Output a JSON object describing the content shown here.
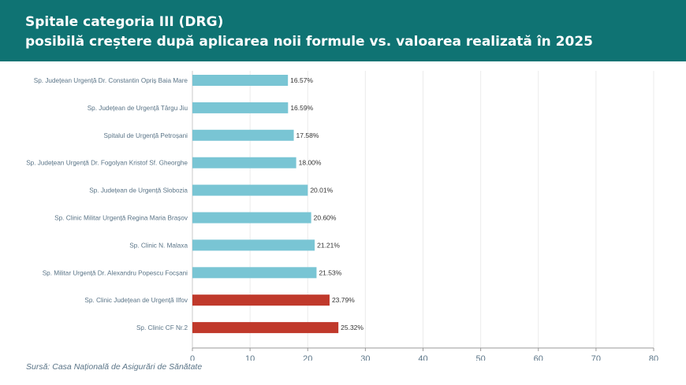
{
  "header": {
    "title_line1": "Spitale categoria III (DRG)",
    "title_line2": "posibilă creștere după aplicarea noii formule vs. valoarea realizată în 2025"
  },
  "source": "Sursă: Casa Națională de Asigurări de Sănătate",
  "colors": {
    "header_bg": "#0f7373",
    "bar_default": "#79c5d4",
    "bar_highlight": "#c0392b"
  },
  "chart_data": {
    "type": "bar",
    "orientation": "horizontal",
    "categories": [
      "Sp. Județean Urgență Dr. Constantin Opriș Baia Mare",
      "Sp. Județean de Urgență Târgu Jiu",
      "Spitalul de Urgență Petroșani",
      "Sp. Județean Urgență Dr. Fogolyan Kristof Sf. Gheorghe",
      "Sp. Județean de Urgență Slobozia",
      "Sp. Clinic Militar Urgență Regina Maria Brașov",
      "Sp. Clinic N. Malaxa",
      "Sp. Militar Urgență Dr. Alexandru Popescu Focșani",
      "Sp. Clinic Județean de Urgență Ilfov",
      "Sp. Clinic CF Nr.2"
    ],
    "values": [
      16.57,
      16.59,
      17.58,
      18.0,
      20.01,
      20.6,
      21.21,
      21.53,
      23.79,
      25.32
    ],
    "data_labels": [
      "16.57%",
      "16.59%",
      "17.58%",
      "18.00%",
      "20.01%",
      "20.60%",
      "21.21%",
      "21.53%",
      "23.79%",
      "25.32%"
    ],
    "highlighted": [
      false,
      false,
      false,
      false,
      false,
      false,
      false,
      false,
      true,
      true
    ],
    "xlim": [
      0,
      80
    ],
    "xticks": [
      0,
      10,
      20,
      30,
      40,
      50,
      60,
      70,
      80
    ],
    "grid": "vertical"
  }
}
